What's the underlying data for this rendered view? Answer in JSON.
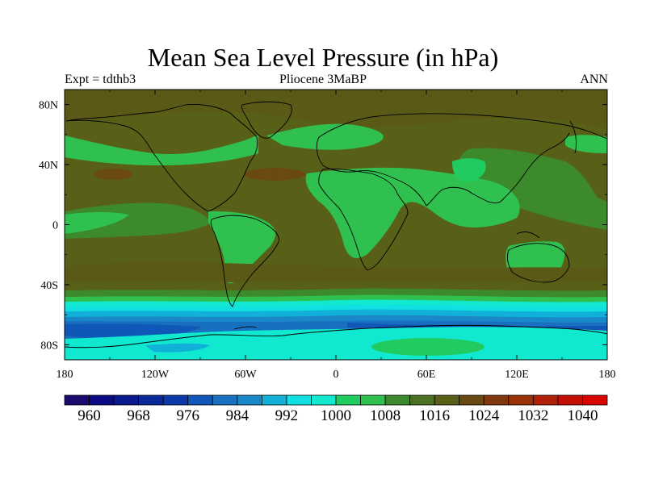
{
  "title": "Mean Sea Level Pressure (in hPa)",
  "subtitle_left": "Expt = tdthb3",
  "subtitle_center": "Pliocene   3MaBP",
  "subtitle_right": "ANN",
  "chart_data": {
    "type": "heatmap",
    "variable": "Mean Sea Level Pressure",
    "units": "hPa",
    "experiment": "tdthb3",
    "period": "Pliocene 3MaBP",
    "season": "ANN",
    "xlim": [
      -180,
      180
    ],
    "ylim": [
      -90,
      90
    ],
    "x_ticks": [
      "180",
      "120W",
      "60W",
      "0",
      "60E",
      "120E",
      "180"
    ],
    "y_ticks": [
      "80N",
      "40N",
      "0",
      "40S",
      "80S"
    ],
    "colorbar": {
      "levels": [
        956,
        960,
        964,
        968,
        972,
        976,
        980,
        984,
        988,
        992,
        996,
        1000,
        1004,
        1008,
        1012,
        1016,
        1020,
        1024,
        1028,
        1032,
        1036,
        1040,
        1044
      ],
      "labels": [
        "960",
        "968",
        "976",
        "984",
        "992",
        "1000",
        "1008",
        "1016",
        "1024",
        "1032",
        "1040"
      ],
      "colors": [
        "#1a0a6e",
        "#0b0a82",
        "#0a1a8c",
        "#0a2a98",
        "#0a38a8",
        "#1058b8",
        "#1870c0",
        "#1a88c8",
        "#10b0d8",
        "#10e0e0",
        "#10e8d0",
        "#20cc60",
        "#30c050",
        "#3c8a2c",
        "#4a7020",
        "#586018",
        "#6a4a10",
        "#80380c",
        "#983008",
        "#b02006",
        "#c41004",
        "#d80404"
      ]
    }
  }
}
